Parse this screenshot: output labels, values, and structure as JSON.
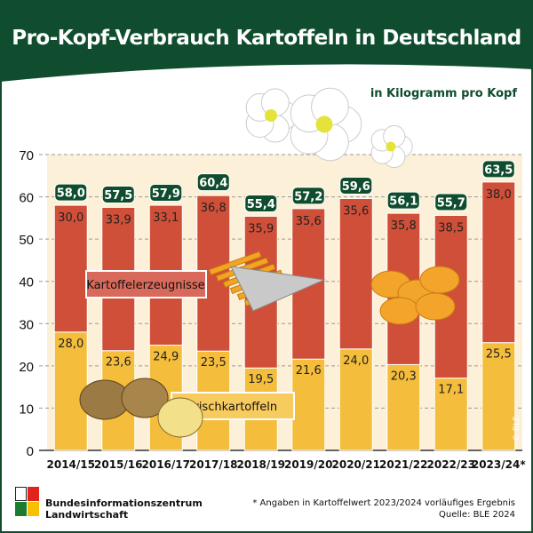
{
  "header": {
    "title": "Pro-Kopf-Verbrauch Kartoffeln in Deutschland",
    "unit": "in Kilogramm pro Kopf"
  },
  "colors": {
    "brand_green": "#0f4d2e",
    "processed": "#cf4f38",
    "fresh": "#f5bd3c",
    "plot_bg": "#fdf0d8"
  },
  "chart_data": {
    "type": "bar",
    "stacked": true,
    "title": "Pro-Kopf-Verbrauch Kartoffeln in Deutschland",
    "ylabel": "in Kilogramm pro Kopf",
    "ylim": [
      0,
      70
    ],
    "yticks": [
      "0",
      "10",
      "20",
      "30",
      "40",
      "50",
      "60",
      "70"
    ],
    "grid": true,
    "categories": [
      "2014/15",
      "2015/16",
      "2016/17",
      "2017/18",
      "2018/19",
      "2019/20",
      "2020/21",
      "2021/22",
      "2022/23",
      "2023/24*"
    ],
    "series": [
      {
        "name": "Frischkartoffeln",
        "color": "#f5bd3c",
        "values": [
          28.0,
          23.6,
          24.9,
          23.5,
          19.5,
          21.6,
          24.0,
          20.3,
          17.1,
          25.5
        ],
        "labels": [
          "28,0",
          "23,6",
          "24,9",
          "23,5",
          "19,5",
          "21,6",
          "24,0",
          "20,3",
          "17,1",
          "25,5"
        ]
      },
      {
        "name": "Kartoffelerzeugnisse",
        "color": "#cf4f38",
        "values": [
          30.0,
          33.9,
          33.1,
          36.8,
          35.9,
          35.6,
          35.6,
          35.8,
          38.5,
          38.0
        ],
        "labels": [
          "30,0",
          "33,9",
          "33,1",
          "36,8",
          "35,9",
          "35,6",
          "35,6",
          "35,8",
          "38,5",
          "38,0"
        ]
      }
    ],
    "totals": [
      58.0,
      57.5,
      57.9,
      60.4,
      55.4,
      57.2,
      59.6,
      56.1,
      55.7,
      63.5
    ],
    "total_labels": [
      "58,0",
      "57,5",
      "57,9",
      "60,4",
      "55,4",
      "57,2",
      "59,6",
      "56,1",
      "55,7",
      "63,5"
    ],
    "copyright": "© BLE"
  },
  "footer": {
    "org_line1": "Bundesinformationszentrum",
    "org_line2": "Landwirtschaft",
    "note": "* Angaben in Kartoffelwert 2023/2024 vorläufiges Ergebnis",
    "source": "Quelle: BLE 2024"
  }
}
